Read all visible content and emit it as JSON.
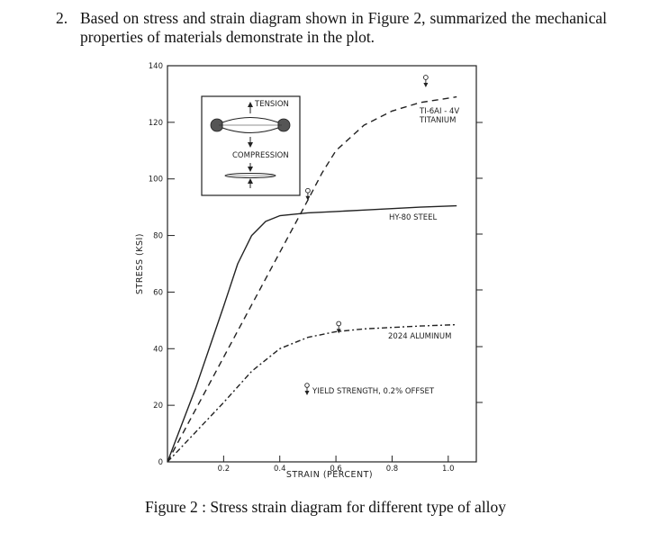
{
  "question": {
    "number": "2.",
    "text": "Based on stress and strain diagram shown in Figure 2, summarized the mechanical properties of materials demonstrate in the plot."
  },
  "figure": {
    "caption": "Figure 2 : Stress strain diagram for different type of alloy",
    "inset": {
      "tension_label": "TENSION",
      "compression_label": "COMPRESSION"
    },
    "annotations": {
      "titanium_line1": "TI-6AI - 4V",
      "titanium_line2": "TITANIUM",
      "steel": "HY-80 STEEL",
      "aluminum": "2024 ALUMINUM",
      "yield_legend": "YIELD STRENGTH, 0.2% OFFSET"
    }
  },
  "chart_data": {
    "type": "line",
    "xlabel": "STRAIN (PERCENT)",
    "ylabel": "STRESS (KSI)",
    "xlim": [
      0,
      1.1
    ],
    "ylim": [
      0,
      140
    ],
    "x_ticks": [
      {
        "value": 0.2,
        "label": "0.2"
      },
      {
        "value": 0.4,
        "label": "0.4"
      },
      {
        "value": 0.6,
        "label": "0.6"
      },
      {
        "value": 0.8,
        "label": "0.8"
      },
      {
        "value": 1.0,
        "label": "1.0"
      }
    ],
    "y_ticks": [
      {
        "value": 0,
        "label": "0"
      },
      {
        "value": 20,
        "label": "20"
      },
      {
        "value": 40,
        "label": "40"
      },
      {
        "value": 60,
        "label": "60"
      },
      {
        "value": 80,
        "label": "80"
      },
      {
        "value": 100,
        "label": "100"
      },
      {
        "value": 120,
        "label": "120"
      },
      {
        "value": 140,
        "label": "140"
      }
    ],
    "grid": false,
    "series": [
      {
        "name": "HY-80 STEEL",
        "style": "solid",
        "x": [
          0,
          0.1,
          0.2,
          0.25,
          0.3,
          0.35,
          0.4,
          0.5,
          0.6,
          0.7,
          0.8,
          0.9,
          1.03
        ],
        "y": [
          0,
          26,
          55,
          70,
          80,
          85,
          87,
          88,
          88.5,
          89,
          89.5,
          90,
          90.5
        ]
      },
      {
        "name": "TI-6AI - 4V TITANIUM",
        "style": "dash",
        "x": [
          0,
          0.1,
          0.2,
          0.3,
          0.4,
          0.5,
          0.55,
          0.6,
          0.7,
          0.8,
          0.9,
          1.03
        ],
        "y": [
          0,
          18.5,
          37,
          55.5,
          74,
          92.5,
          102,
          110,
          119,
          124,
          127,
          129
        ]
      },
      {
        "name": "2024 ALUMINUM",
        "style": "dashdot",
        "x": [
          0,
          0.1,
          0.2,
          0.3,
          0.4,
          0.5,
          0.6,
          0.7,
          0.8,
          0.9,
          1.03
        ],
        "y": [
          0,
          10.5,
          21,
          32,
          40,
          44,
          46,
          47,
          47.5,
          48,
          48.5
        ]
      }
    ],
    "yield_points": [
      {
        "series": "HY-80 STEEL",
        "x": 0.5,
        "y": 93
      },
      {
        "series": "TI-6AI - 4V TITANIUM",
        "x": 0.92,
        "y": 133
      },
      {
        "series": "2024 ALUMINUM",
        "x": 0.61,
        "y": 46
      }
    ]
  }
}
